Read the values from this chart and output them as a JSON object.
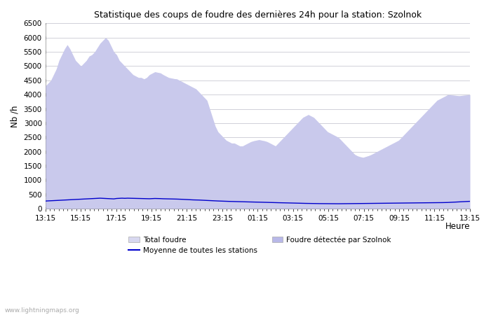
{
  "title": "Statistique des coups de foudre des dernières 24h pour la station: Szolnok",
  "xlabel": "Heure",
  "ylabel": "Nb /h",
  "watermark": "www.lightningmaps.org",
  "ylim": [
    0,
    6500
  ],
  "yticks": [
    0,
    500,
    1000,
    1500,
    2000,
    2500,
    3000,
    3500,
    4000,
    4500,
    5000,
    5500,
    6000,
    6500
  ],
  "xtick_labels": [
    "13:15",
    "15:15",
    "17:15",
    "19:15",
    "21:15",
    "23:15",
    "01:15",
    "03:15",
    "05:15",
    "07:15",
    "09:15",
    "11:15",
    "13:15"
  ],
  "bg_color": "#ffffff",
  "grid_color": "#d0d0d8",
  "fill_total_color": "#d8d8f0",
  "fill_station_color": "#b8b8e8",
  "line_avg_color": "#0000cc",
  "total_foudre": [
    4300,
    4400,
    4500,
    4700,
    4900,
    5200,
    5400,
    5600,
    5750,
    5600,
    5400,
    5200,
    5100,
    5000,
    5100,
    5200,
    5350,
    5400,
    5500,
    5650,
    5800,
    5900,
    6000,
    5900,
    5700,
    5500,
    5400,
    5200,
    5100,
    5000,
    4900,
    4800,
    4700,
    4650,
    4600,
    4600,
    4550,
    4600,
    4700,
    4750,
    4800,
    4780,
    4760,
    4700,
    4650,
    4600,
    4580,
    4560,
    4550,
    4500,
    4450,
    4400,
    4350,
    4300,
    4250,
    4200,
    4100,
    4000,
    3900,
    3800,
    3500,
    3200,
    2900,
    2700,
    2600,
    2500,
    2400,
    2350,
    2300,
    2300,
    2250,
    2200,
    2200,
    2250,
    2300,
    2350,
    2380,
    2400,
    2420,
    2400,
    2380,
    2350,
    2300,
    2250,
    2200,
    2300,
    2400,
    2500,
    2600,
    2700,
    2800,
    2900,
    3000,
    3100,
    3200,
    3250,
    3300,
    3250,
    3200,
    3100,
    3000,
    2900,
    2800,
    2700,
    2650,
    2600,
    2550,
    2500,
    2400,
    2300,
    2200,
    2100,
    2000,
    1900,
    1850,
    1820,
    1800,
    1830,
    1860,
    1900,
    1950,
    2000,
    2050,
    2100,
    2150,
    2200,
    2250,
    2300,
    2350,
    2400,
    2500,
    2600,
    2700,
    2800,
    2900,
    3000,
    3100,
    3200,
    3300,
    3400,
    3500,
    3600,
    3700,
    3800,
    3850,
    3900,
    3950,
    4000,
    3990,
    3980,
    3970,
    3960,
    3970,
    3980,
    3990,
    4000
  ],
  "avg_line": [
    270,
    275,
    280,
    285,
    290,
    295,
    300,
    305,
    310,
    315,
    320,
    325,
    330,
    335,
    340,
    345,
    350,
    355,
    360,
    365,
    370,
    365,
    360,
    355,
    350,
    345,
    360,
    365,
    370,
    365,
    370,
    368,
    365,
    362,
    360,
    358,
    355,
    352,
    350,
    355,
    360,
    358,
    355,
    350,
    348,
    345,
    342,
    340,
    338,
    335,
    330,
    325,
    320,
    315,
    310,
    308,
    305,
    300,
    295,
    290,
    285,
    280,
    275,
    272,
    268,
    265,
    262,
    258,
    255,
    252,
    250,
    248,
    245,
    242,
    240,
    238,
    235,
    232,
    230,
    228,
    225,
    222,
    220,
    218,
    215,
    212,
    210,
    208,
    205,
    202,
    200,
    198,
    195,
    192,
    190,
    188,
    186,
    185,
    183,
    181,
    180,
    179,
    178,
    177,
    176,
    175,
    175,
    175,
    176,
    177,
    178,
    179,
    180,
    181,
    182,
    183,
    185,
    186,
    187,
    188,
    189,
    190,
    191,
    192,
    193,
    194,
    195,
    196,
    197,
    198,
    199,
    200,
    201,
    202,
    203,
    204,
    205,
    206,
    207,
    208,
    209,
    210,
    211,
    212,
    213,
    215,
    217,
    220,
    225,
    230,
    235,
    240,
    245,
    250,
    255,
    260,
    265,
    270,
    275,
    280,
    285,
    290,
    295,
    300,
    305,
    310,
    315,
    320
  ]
}
